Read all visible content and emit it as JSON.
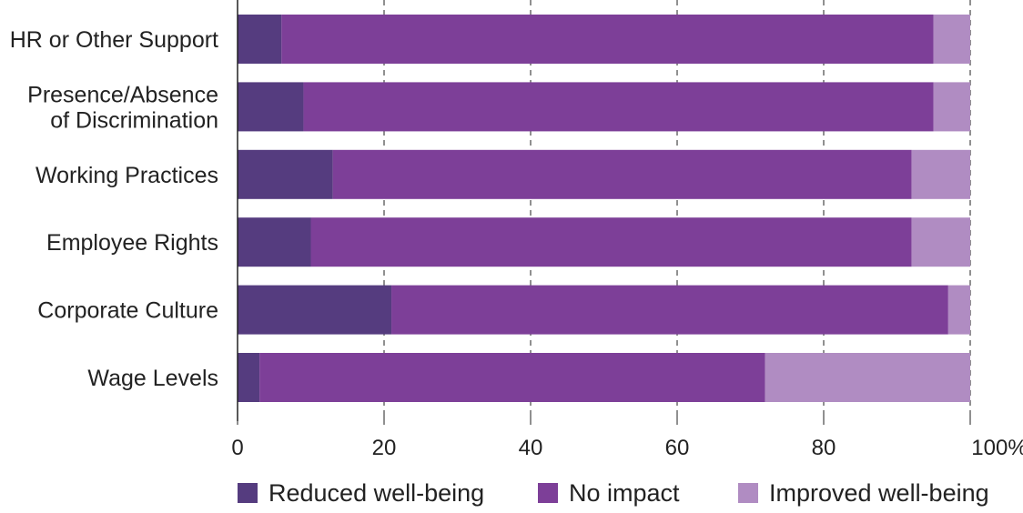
{
  "chart_data": {
    "type": "bar",
    "orientation": "horizontal",
    "stacked": true,
    "categories": [
      [
        "HR or Other Support"
      ],
      [
        "Presence/Absence",
        "of Discrimination"
      ],
      [
        "Working Practices"
      ],
      [
        "Employee Rights"
      ],
      [
        "Corporate Culture"
      ],
      [
        "Wage Levels"
      ]
    ],
    "series": [
      {
        "name": "Reduced well-being",
        "color": "#553c7f",
        "values": [
          6,
          9,
          13,
          10,
          21,
          3
        ]
      },
      {
        "name": "No impact",
        "color": "#7d3f98",
        "values": [
          89,
          86,
          79,
          82,
          76,
          69
        ]
      },
      {
        "name": "Improved well-being",
        "color": "#b08cc2",
        "values": [
          5,
          5,
          8,
          8,
          3,
          28
        ]
      }
    ],
    "xlim": [
      0,
      100
    ],
    "x_ticks": [
      "0",
      "20",
      "40",
      "60",
      "80",
      "100%"
    ],
    "grid": "vertical dashed",
    "legend_position": "bottom",
    "title": "",
    "xlabel": "",
    "ylabel": ""
  }
}
